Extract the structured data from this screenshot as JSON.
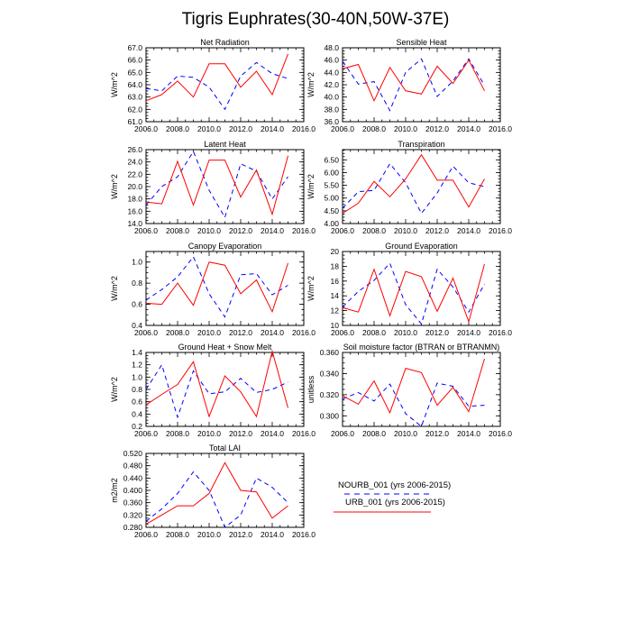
{
  "figure": {
    "title": "Tigris Euphrates(30-40N,50W-37E)",
    "legend": [
      {
        "label": "NOURB_001 (yrs 2006-2015)",
        "color": "#0000ff",
        "dash": "dashed"
      },
      {
        "label": "URB_001 (yrs 2006-2015)",
        "color": "#ff0000",
        "dash": "solid"
      }
    ]
  },
  "chart_data": [
    {
      "type": "line",
      "title": "Net Radiation",
      "ylabel": "W/m^2",
      "xlim": [
        2006,
        2016
      ],
      "ylim": [
        61,
        67
      ],
      "xticks": [
        "2006.0",
        "2008.0",
        "2010.0",
        "2012.0",
        "2014.0",
        "2016.0"
      ],
      "yticks": [
        "61.0",
        "62.0",
        "63.0",
        "64.0",
        "65.0",
        "66.0",
        "67.0"
      ],
      "x": [
        2006,
        2007,
        2008,
        2009,
        2010,
        2011,
        2012,
        2013,
        2014,
        2015
      ],
      "series": [
        {
          "name": "NOURB_001 (yrs 2006-2015)",
          "values": [
            63.7,
            63.5,
            64.7,
            64.6,
            63.8,
            62.0,
            64.7,
            65.8,
            64.9,
            64.5
          ]
        },
        {
          "name": "URB_001 (yrs 2006-2015)",
          "values": [
            62.7,
            63.2,
            64.3,
            63.0,
            65.7,
            65.7,
            63.8,
            65.1,
            63.2,
            66.5
          ]
        }
      ]
    },
    {
      "type": "line",
      "title": "Sensible Heat",
      "ylabel": "W/m^2",
      "xlim": [
        2006,
        2016
      ],
      "ylim": [
        36,
        48
      ],
      "xticks": [
        "2006.0",
        "2008.0",
        "2010.0",
        "2012.0",
        "2014.0",
        "2016.0"
      ],
      "yticks": [
        "36.0",
        "38.0",
        "40.0",
        "42.0",
        "44.0",
        "46.0",
        "48.0"
      ],
      "x": [
        2006,
        2007,
        2008,
        2009,
        2010,
        2011,
        2012,
        2013,
        2014,
        2015
      ],
      "series": [
        {
          "name": "NOURB_001 (yrs 2006-2015)",
          "values": [
            45.8,
            42.1,
            42.5,
            37.8,
            44.0,
            46.2,
            40.1,
            42.6,
            46.2,
            41.9
          ]
        },
        {
          "name": "URB_001 (yrs 2006-2015)",
          "values": [
            44.6,
            45.3,
            39.4,
            44.8,
            41.0,
            40.5,
            45.0,
            42.2,
            46.0,
            41.0
          ]
        }
      ]
    },
    {
      "type": "line",
      "title": "Latent Heat",
      "ylabel": "W/m^2",
      "xlim": [
        2006,
        2016
      ],
      "ylim": [
        14,
        26
      ],
      "xticks": [
        "2006.0",
        "2008.0",
        "2010.0",
        "2012.0",
        "2014.0",
        "2016.0"
      ],
      "yticks": [
        "14.0",
        "16.0",
        "18.0",
        "20.0",
        "22.0",
        "24.0",
        "26.0"
      ],
      "x": [
        2006,
        2007,
        2008,
        2009,
        2010,
        2011,
        2012,
        2013,
        2014,
        2015
      ],
      "series": [
        {
          "name": "NOURB_001 (yrs 2006-2015)",
          "values": [
            17.0,
            20.0,
            21.6,
            25.7,
            19.4,
            15.0,
            23.7,
            22.5,
            18.0,
            21.6
          ]
        },
        {
          "name": "URB_001 (yrs 2006-2015)",
          "values": [
            17.5,
            17.2,
            24.1,
            17.0,
            24.3,
            24.3,
            18.3,
            22.7,
            15.5,
            25.0
          ]
        }
      ]
    },
    {
      "type": "line",
      "title": "Transpiration",
      "ylabel": "W/m^2",
      "xlim": [
        2006,
        2016
      ],
      "ylim": [
        4.0,
        6.9
      ],
      "xticks": [
        "2006.0",
        "2008.0",
        "2010.0",
        "2012.0",
        "2014.0",
        "2016.0"
      ],
      "yticks": [
        "4.00",
        "4.50",
        "5.00",
        "5.50",
        "6.00",
        "6.50"
      ],
      "x": [
        2006,
        2007,
        2008,
        2009,
        2010,
        2011,
        2012,
        2013,
        2014,
        2015
      ],
      "series": [
        {
          "name": "NOURB_001 (yrs 2006-2015)",
          "values": [
            4.6,
            5.25,
            5.3,
            6.35,
            5.6,
            4.4,
            5.2,
            6.25,
            5.6,
            5.45
          ]
        },
        {
          "name": "URB_001 (yrs 2006-2015)",
          "values": [
            4.4,
            4.8,
            5.65,
            5.05,
            5.75,
            6.7,
            5.7,
            5.7,
            4.65,
            5.75
          ]
        }
      ]
    },
    {
      "type": "line",
      "title": "Canopy Evaporation",
      "ylabel": "W/m^2",
      "xlim": [
        2006,
        2016
      ],
      "ylim": [
        0.4,
        1.1
      ],
      "xticks": [
        "2006.0",
        "2008.0",
        "2010.0",
        "2012.0",
        "2014.0",
        "2016.0"
      ],
      "yticks": [
        "0.4",
        "0.6",
        "0.8",
        "1.0"
      ],
      "x": [
        2006,
        2007,
        2008,
        2009,
        2010,
        2011,
        2012,
        2013,
        2014,
        2015
      ],
      "series": [
        {
          "name": "NOURB_001 (yrs 2006-2015)",
          "values": [
            0.64,
            0.74,
            0.86,
            1.05,
            0.7,
            0.48,
            0.88,
            0.89,
            0.69,
            0.78
          ]
        },
        {
          "name": "URB_001 (yrs 2006-2015)",
          "values": [
            0.61,
            0.6,
            0.8,
            0.59,
            1.0,
            0.97,
            0.7,
            0.83,
            0.53,
            0.99
          ]
        }
      ]
    },
    {
      "type": "line",
      "title": "Ground Evaporation",
      "ylabel": "W/m^2",
      "xlim": [
        2006,
        2016
      ],
      "ylim": [
        10,
        20
      ],
      "xticks": [
        "2006.0",
        "2008.0",
        "2010.0",
        "2012.0",
        "2014.0",
        "2016.0"
      ],
      "yticks": [
        "10",
        "12",
        "14",
        "16",
        "18",
        "20"
      ],
      "x": [
        2006,
        2007,
        2008,
        2009,
        2010,
        2011,
        2012,
        2013,
        2014,
        2015
      ],
      "series": [
        {
          "name": "NOURB_001 (yrs 2006-2015)",
          "values": [
            12.5,
            14.6,
            16.1,
            18.4,
            12.8,
            10.2,
            17.6,
            15.2,
            11.8,
            15.6
          ]
        },
        {
          "name": "URB_001 (yrs 2006-2015)",
          "values": [
            12.4,
            11.8,
            17.6,
            11.3,
            17.3,
            16.6,
            11.9,
            16.4,
            10.5,
            18.3
          ]
        }
      ]
    },
    {
      "type": "line",
      "title": "Ground Heat + Snow Melt",
      "ylabel": "W/m^2",
      "xlim": [
        2006,
        2016
      ],
      "ylim": [
        0.2,
        1.4
      ],
      "xticks": [
        "2006.0",
        "2008.0",
        "2010.0",
        "2012.0",
        "2014.0",
        "2016.0"
      ],
      "yticks": [
        "0.2",
        "0.4",
        "0.6",
        "0.8",
        "1.0",
        "1.2",
        "1.4"
      ],
      "x": [
        2006,
        2007,
        2008,
        2009,
        2010,
        2011,
        2012,
        2013,
        2014,
        2015
      ],
      "series": [
        {
          "name": "NOURB_001 (yrs 2006-2015)",
          "values": [
            0.8,
            1.2,
            0.35,
            1.1,
            0.73,
            0.76,
            0.98,
            0.75,
            0.8,
            0.92
          ]
        },
        {
          "name": "URB_001 (yrs 2006-2015)",
          "values": [
            0.55,
            0.72,
            0.88,
            1.25,
            0.36,
            1.02,
            0.76,
            0.36,
            1.42,
            0.5
          ]
        }
      ]
    },
    {
      "type": "line",
      "title": "Soil moisture factor (BTRAN or BTRANMN)",
      "ylabel": "unitless",
      "xlim": [
        2006,
        2016
      ],
      "ylim": [
        0.29,
        0.36
      ],
      "xticks": [
        "2006.0",
        "2008.0",
        "2010.0",
        "2012.0",
        "2014.0",
        "2016.0"
      ],
      "yticks": [
        "0.300",
        "0.320",
        "0.340",
        "0.360"
      ],
      "x": [
        2006,
        2007,
        2008,
        2009,
        2010,
        2011,
        2012,
        2013,
        2014,
        2015
      ],
      "series": [
        {
          "name": "NOURB_001 (yrs 2006-2015)",
          "values": [
            0.316,
            0.322,
            0.314,
            0.33,
            0.302,
            0.29,
            0.331,
            0.328,
            0.309,
            0.31
          ]
        },
        {
          "name": "URB_001 (yrs 2006-2015)",
          "values": [
            0.319,
            0.311,
            0.333,
            0.303,
            0.345,
            0.341,
            0.31,
            0.327,
            0.304,
            0.354
          ]
        }
      ]
    },
    {
      "type": "line",
      "title": "Total LAI",
      "ylabel": "m2/m2",
      "xlim": [
        2006,
        2016
      ],
      "ylim": [
        0.28,
        0.52
      ],
      "xticks": [
        "2006.0",
        "2008.0",
        "2010.0",
        "2012.0",
        "2014.0",
        "2016.0"
      ],
      "yticks": [
        "0.280",
        "0.320",
        "0.360",
        "0.400",
        "0.440",
        "0.480",
        "0.520"
      ],
      "x": [
        2006,
        2007,
        2008,
        2009,
        2010,
        2011,
        2012,
        2013,
        2014,
        2015
      ],
      "series": [
        {
          "name": "NOURB_001 (yrs 2006-2015)",
          "values": [
            0.3,
            0.34,
            0.39,
            0.46,
            0.4,
            0.28,
            0.32,
            0.44,
            0.41,
            0.36
          ]
        },
        {
          "name": "URB_001 (yrs 2006-2015)",
          "values": [
            0.29,
            0.32,
            0.35,
            0.35,
            0.39,
            0.49,
            0.4,
            0.395,
            0.31,
            0.35
          ]
        }
      ]
    }
  ]
}
